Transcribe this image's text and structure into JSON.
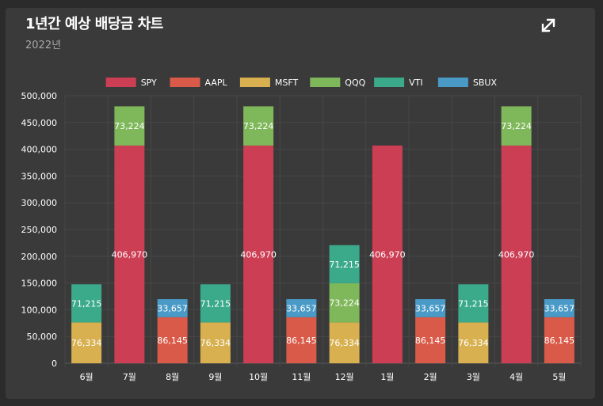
{
  "header": {
    "title": "1년간 예상 배당금 차트",
    "subtitle": "2022년",
    "expand_icon": "expand-arrows-icon"
  },
  "chart_data": {
    "type": "bar",
    "stacked": true,
    "title": "1년간 예상 배당금 차트",
    "subtitle": "2022년",
    "categories": [
      "6월",
      "7월",
      "8월",
      "9월",
      "10월",
      "11월",
      "12월",
      "1월",
      "2월",
      "3월",
      "4월",
      "5월"
    ],
    "series": [
      {
        "name": "SPY",
        "color": "#cc3e54",
        "values": [
          0,
          406970,
          0,
          0,
          406970,
          0,
          0,
          406970,
          0,
          0,
          406970,
          0
        ]
      },
      {
        "name": "AAPL",
        "color": "#d95a48",
        "values": [
          0,
          0,
          86145,
          0,
          0,
          86145,
          0,
          0,
          86145,
          0,
          0,
          86145
        ]
      },
      {
        "name": "MSFT",
        "color": "#d8b04f",
        "values": [
          76334,
          0,
          0,
          76334,
          0,
          0,
          76334,
          0,
          0,
          76334,
          0,
          0
        ]
      },
      {
        "name": "QQQ",
        "color": "#7fb85a",
        "values": [
          0,
          73224,
          0,
          0,
          73224,
          0,
          73224,
          0,
          0,
          0,
          73224,
          0
        ]
      },
      {
        "name": "VTI",
        "color": "#3aaa8a",
        "values": [
          71215,
          0,
          0,
          71215,
          0,
          0,
          71215,
          0,
          0,
          71215,
          0,
          0
        ]
      },
      {
        "name": "SBUX",
        "color": "#4a9ac8",
        "values": [
          0,
          0,
          33657,
          0,
          0,
          33657,
          0,
          0,
          33657,
          0,
          0,
          33657
        ]
      }
    ],
    "y_ticks": [
      "0",
      "50,000",
      "100,000",
      "150,000",
      "200,000",
      "250,000",
      "300,000",
      "350,000",
      "400,000",
      "450,000",
      "500,000"
    ],
    "ylim": [
      0,
      500000
    ],
    "xlabel": "",
    "ylabel": "",
    "legend_position": "top-center",
    "grid": true
  }
}
